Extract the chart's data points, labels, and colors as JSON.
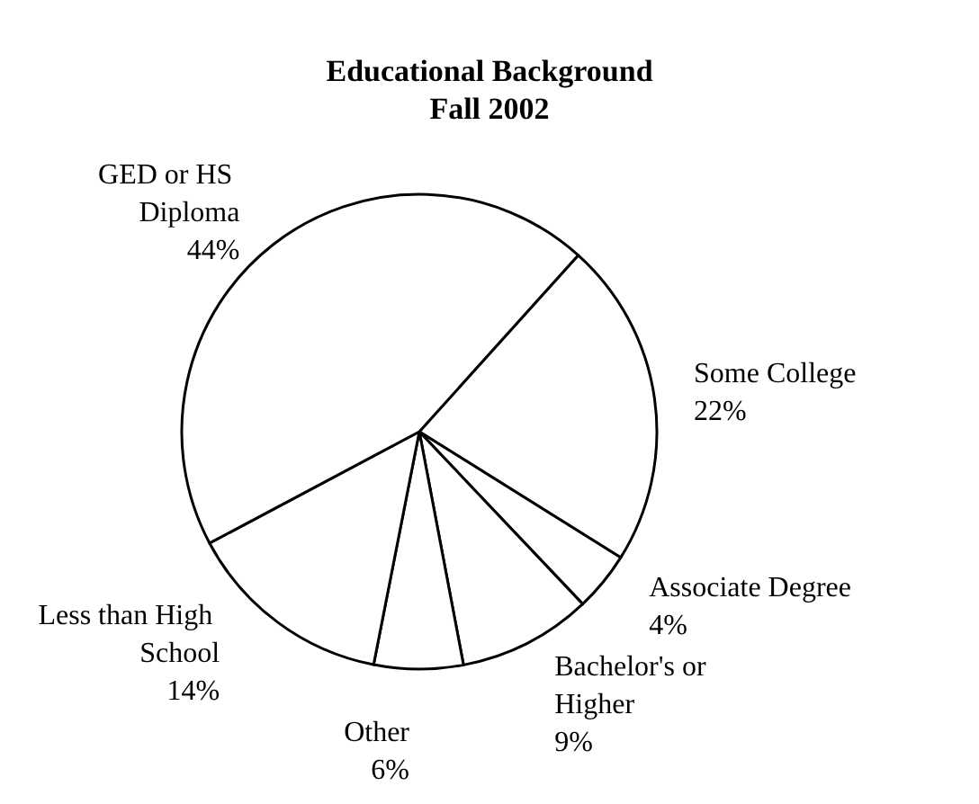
{
  "chart_data": {
    "type": "pie",
    "title": "Educational Background",
    "subtitle": "Fall 2002",
    "categories": [
      "Some College",
      "Associate Degree",
      "Bachelor's or Higher",
      "Other",
      "Less than High School",
      "GED or HS Diploma"
    ],
    "values": [
      22,
      4,
      9,
      6,
      14,
      44
    ],
    "value_labels": [
      "22%",
      "4%",
      "9%",
      "6%",
      "14%",
      "44%"
    ],
    "colors": [
      "#ffffff",
      "#ffffff",
      "#ffffff",
      "#ffffff",
      "#ffffff",
      "#ffffff"
    ],
    "legend": false
  }
}
